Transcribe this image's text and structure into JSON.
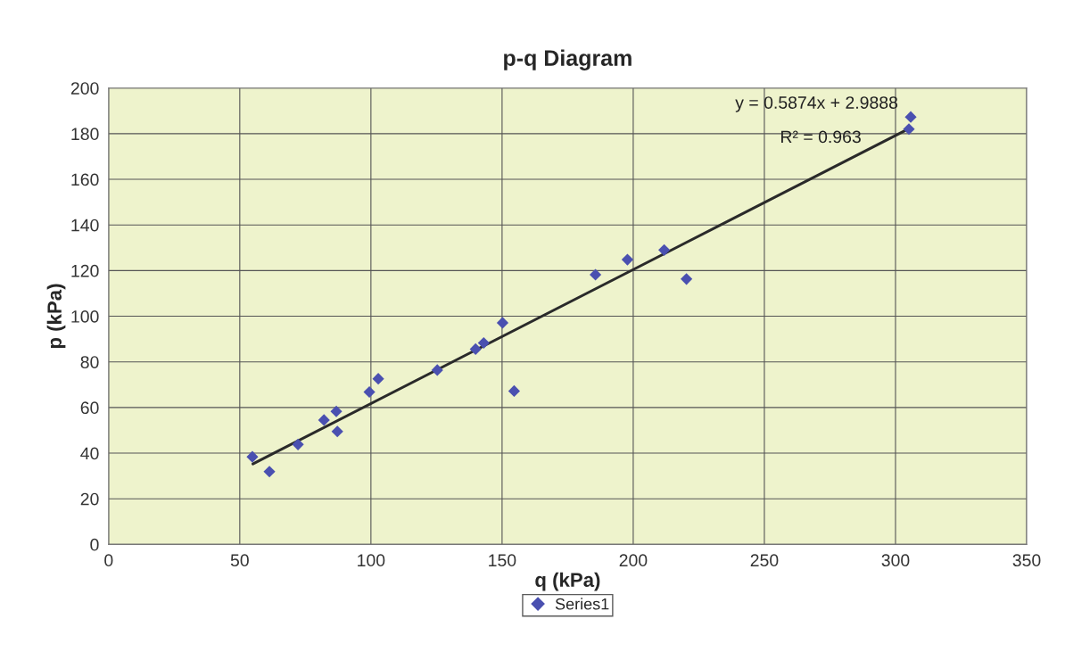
{
  "chart_data": {
    "type": "scatter",
    "title": "p-q Diagram",
    "xlabel": "q (kPa)",
    "ylabel": "p (kPa)",
    "series": [
      {
        "name": "Series1",
        "color": "#4a50b0",
        "marker": "diamond",
        "x": [
          54.8,
          61.3,
          72.2,
          82.1,
          86.8,
          87.2,
          99.4,
          102.8,
          125.3,
          139.9,
          143,
          150.2,
          154.6,
          185.6,
          197.8,
          211.8,
          220.3,
          305.8,
          305.1
        ],
        "values": [
          38.4,
          31.9,
          43.8,
          54.5,
          58.3,
          49.5,
          66.8,
          72.6,
          76.4,
          85.6,
          88.3,
          97.1,
          67.2,
          118.2,
          124.8,
          129,
          116.3,
          187.3,
          182
        ]
      },
      {
        "type": "line",
        "color": "#2a2a2a",
        "marker": "none",
        "line_style": "solid",
        "x": [
          55,
          305
        ],
        "values": [
          35.3,
          182.1
        ]
      }
    ],
    "annotations": [
      "y = 0.5874x + 2.9888",
      "R² = 0.963"
    ],
    "xlim": [
      0,
      350
    ],
    "xticks": [
      0,
      50,
      100,
      150,
      200,
      250,
      300,
      350
    ],
    "ylim": [
      0,
      200
    ],
    "yticks": [
      0,
      20,
      40,
      60,
      80,
      100,
      120,
      140,
      160,
      180,
      200
    ],
    "grid": true,
    "legend": "bottom"
  }
}
